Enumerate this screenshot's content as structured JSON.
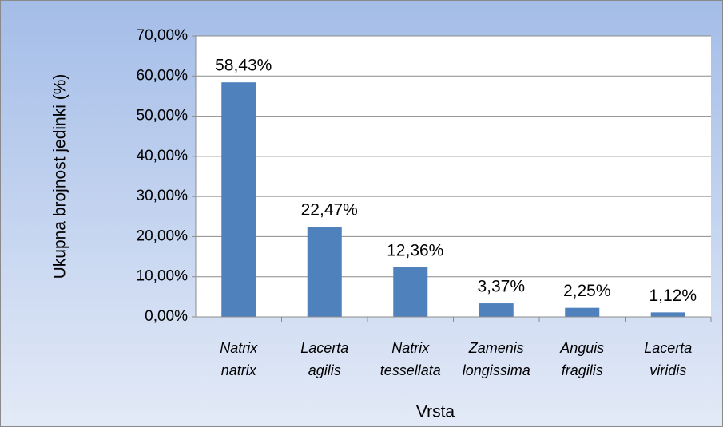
{
  "chart_data": {
    "type": "bar",
    "categories": [
      "Natrix natrix",
      "Lacerta agilis",
      "Natrix tessellata",
      "Zamenis longissima",
      "Anguis fragilis",
      "Lacerta viridis"
    ],
    "values": [
      58.43,
      22.47,
      12.36,
      3.37,
      2.25,
      1.12
    ],
    "value_labels": [
      "58,43%",
      "22,47%",
      "12,36%",
      "3,37%",
      "2,25%",
      "1,12%"
    ],
    "color": "#4f81bd",
    "x_label": "Vrsta",
    "y_label": "Ukupna brojnost jedinki (%)",
    "ylim": [
      0,
      70
    ],
    "yticks": [
      {
        "value": 0,
        "label": "0,00%"
      },
      {
        "value": 10,
        "label": "10,00%"
      },
      {
        "value": 20,
        "label": "20,00%"
      },
      {
        "value": 30,
        "label": "30,00%"
      },
      {
        "value": 40,
        "label": "40,00%"
      },
      {
        "value": 50,
        "label": "50,00%"
      },
      {
        "value": 60,
        "label": "60,00%"
      },
      {
        "value": 70,
        "label": "70,00%"
      }
    ],
    "grid": true
  }
}
